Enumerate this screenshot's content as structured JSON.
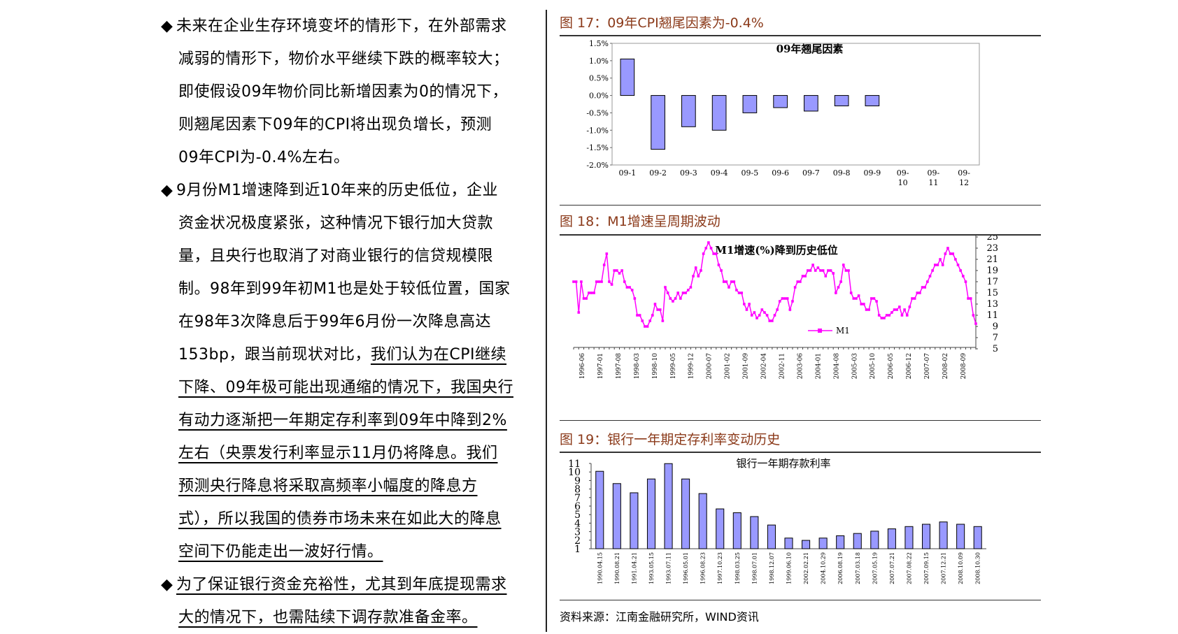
{
  "left_text": {
    "bullet_symbol": "◆",
    "p1_first": "未来在企业生存环境变坏的情形下，在外部需求",
    "p1_rest": [
      "减弱的情形下，物价水平继续下跌的概率较大；",
      "即使假设09年物价同比新增因素为0的情况下，",
      "则翘尾因素下09年的CPI将出现负增长，预测",
      "09年CPI为-0.4%左右。"
    ],
    "p2_first": "9月份M1增速降到近10年来的历史低位，企业",
    "p2_rest": [
      "资金状况极度紧张，这种情况下银行加大贷款",
      "量，且央行也取消了对商业银行的信贷规模限",
      "制。98年到99年初M1也是处于较低位置，国家",
      "在98年3次降息后于99年6月份一次降息高达"
    ],
    "p2_line_plain": "153bp，跟当前现状对比，",
    "p2_line_ul": "我们认为在CPI继续",
    "p2_ul_rest": [
      "下降、09年极可能出现通缩的情况下，我国央行",
      "有动力逐渐把一年期定存利率到09年中降到2%",
      "左右（央票发行利率显示11月仍将降息。我们",
      "预测央行降息将采取高频率小幅度的降息方",
      "式），所以我国的债券市场未来在如此大的降息",
      "空间下仍能走出一波好行情。"
    ],
    "p3_first": "为了保证银行资金充裕性，尤其到年底提现需求",
    "p3_rest": [
      "大的情况下，也需陆续下调存款准备金率。"
    ]
  },
  "figures": {
    "fig17_title": "图 17：09年CPI翘尾因素为-0.4%",
    "fig18_title": "图 18：M1增速呈周期波动",
    "fig19_title": "图 19：银行一年期定存利率变动历史",
    "source": "资料来源：江南金融研究所，WIND资讯"
  },
  "colors": {
    "bar": "#9999ff",
    "line": "#ff00ff",
    "title": "#8b3a1a"
  },
  "chart_data": [
    {
      "type": "bar",
      "title": "09年翘尾因素",
      "categories": [
        "09-1",
        "09-2",
        "09-3",
        "09-4",
        "09-5",
        "09-6",
        "09-7",
        "09-8",
        "09-9",
        "09-10",
        "09-11",
        "09-12"
      ],
      "values": [
        1.05,
        -1.55,
        -0.9,
        -1.0,
        -0.5,
        -0.35,
        -0.45,
        -0.3,
        -0.3,
        0,
        0,
        0
      ],
      "ylim": [
        -2.0,
        1.5
      ],
      "yticks": [
        "1.5%",
        "1.0%",
        "0.5%",
        "0.0%",
        "-0.5%",
        "-1.0%",
        "-1.5%",
        "-2.0%"
      ]
    },
    {
      "type": "line",
      "title": "M1增速(%)降到历史低位",
      "series": [
        {
          "name": "M1",
          "values": [
            17,
            17,
            11.5,
            17,
            14,
            14,
            15,
            15,
            15,
            17,
            17,
            17,
            20,
            22,
            17,
            16.5,
            19,
            19,
            18.5,
            19,
            17,
            16,
            16,
            15.5,
            14,
            11,
            11,
            10,
            9,
            9,
            10,
            11,
            13,
            12,
            12,
            10,
            16,
            15,
            14,
            13.5,
            14,
            15,
            14,
            15,
            15,
            15.5,
            16,
            18,
            19.5,
            18,
            19,
            22,
            23,
            24,
            23,
            22,
            22,
            20,
            19,
            17,
            17,
            16,
            17,
            17,
            15.5,
            15,
            15,
            13,
            12,
            13,
            11,
            11.5,
            10.5,
            11,
            12,
            11.5,
            11,
            10,
            10,
            11,
            12,
            13.5,
            14,
            14,
            14,
            12,
            13.5,
            16,
            17,
            17,
            18,
            18,
            19,
            19,
            20,
            19,
            19.5,
            19,
            19,
            18,
            19,
            19,
            18.5,
            15,
            16,
            17,
            20,
            19,
            19,
            15,
            14,
            14,
            14.5,
            13,
            13,
            12,
            12,
            14,
            14,
            13.5,
            11,
            10.5,
            10.5,
            11,
            11,
            11.5,
            12,
            12,
            12.5,
            11,
            12,
            11,
            12.5,
            14,
            14,
            15,
            15,
            16,
            16,
            17,
            18,
            19,
            20,
            20,
            21,
            20,
            22,
            23,
            22,
            22,
            21,
            20,
            19,
            18,
            17,
            14,
            14,
            11,
            9.5
          ]
        }
      ],
      "xticks": [
        "1996-06",
        "1997-01",
        "1997-08",
        "1998-03",
        "1998-10",
        "1999-05",
        "1999-12",
        "2000-07",
        "2001-02",
        "2001-09",
        "2002-04",
        "2002-11",
        "2003-06",
        "2004-01",
        "2004-08",
        "2005-03",
        "2005-10",
        "2006-05",
        "2006-12",
        "2007-07",
        "2008-02",
        "2008-09"
      ],
      "ylim": [
        5,
        25
      ],
      "yticks": [
        "25",
        "23",
        "21",
        "19",
        "17",
        "15",
        "13",
        "11",
        "9",
        "7",
        "5"
      ]
    },
    {
      "type": "bar",
      "title": "银行一年期存款利率",
      "categories": [
        "1990.04.15",
        "1990.08.21",
        "1991.04.21",
        "1993.05.15",
        "1993.07.11",
        "1996.05.01",
        "1996.08.23",
        "1997.10.23",
        "1998.03.25",
        "1998.07.01",
        "1998.12.07",
        "1999.06.10",
        "2002.02.21",
        "2004.10.29",
        "2006.08.19",
        "2007.03.18",
        "2007.05.19",
        "2007.07.21",
        "2007.08.22",
        "2007.09.15",
        "2007.12.21",
        "2008.10.09",
        "2008.10.30"
      ],
      "values": [
        10.08,
        8.64,
        7.56,
        9.18,
        10.98,
        9.18,
        7.47,
        5.67,
        5.22,
        4.77,
        3.78,
        2.25,
        1.98,
        2.25,
        2.52,
        2.79,
        3.06,
        3.33,
        3.6,
        3.87,
        4.14,
        3.87,
        3.6
      ],
      "ylim": [
        1,
        11
      ],
      "yticks": [
        "11",
        "10",
        "9",
        "8",
        "7",
        "6",
        "5",
        "4",
        "3",
        "2",
        "1"
      ]
    }
  ]
}
